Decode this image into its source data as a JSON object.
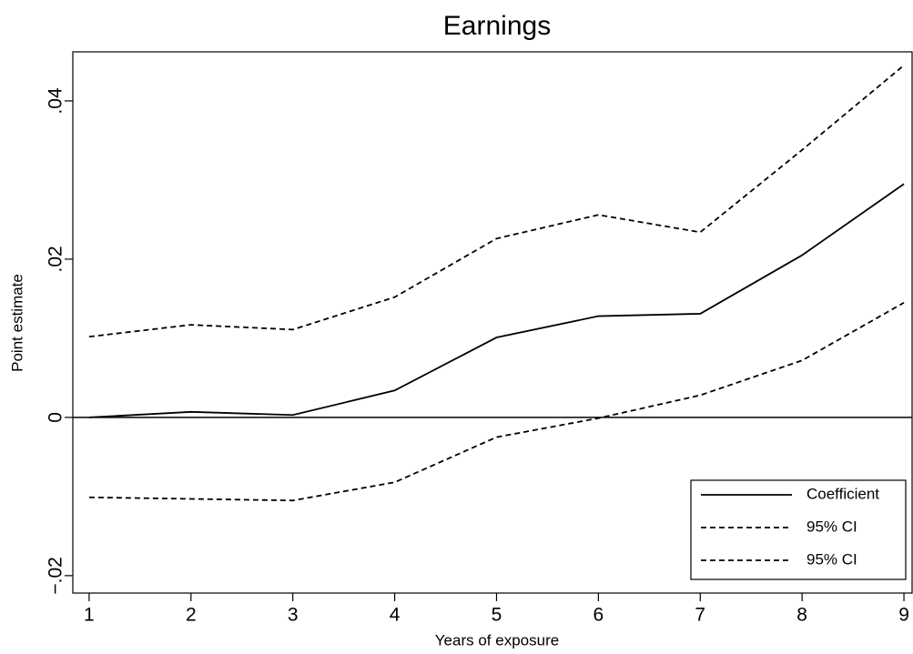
{
  "chart_data": {
    "type": "line",
    "title": "Earnings",
    "x_label": "Years of exposure",
    "y_label": "Point estimate",
    "x": [
      1,
      2,
      3,
      4,
      5,
      6,
      7,
      8,
      9
    ],
    "series": [
      {
        "name": "Coefficient",
        "color": "#000000",
        "dash": false,
        "values": [
          0,
          0.0007,
          0.0003,
          0.0034,
          0.0101,
          0.0128,
          0.0131,
          0.0205,
          0.0295
        ]
      },
      {
        "name": "95% CI",
        "color": "#000000",
        "dash": true,
        "values": [
          0.0102,
          0.0117,
          0.0111,
          0.0152,
          0.0226,
          0.0256,
          0.0234,
          0.0338,
          0.0445
        ]
      },
      {
        "name": "95% CI",
        "color": "#000000",
        "dash": true,
        "values": [
          -0.0101,
          -0.0103,
          -0.0105,
          -0.0082,
          -0.0025,
          -0.0001,
          0.0028,
          0.0072,
          0.0145
        ]
      }
    ],
    "xlim": [
      0.84,
      9.08
    ],
    "xticks": [
      1,
      2,
      3,
      4,
      5,
      6,
      7,
      8,
      9
    ],
    "ylim": [
      -0.0222,
      0.0462
    ],
    "yticks": [
      {
        "value": -0.02,
        "label": "−.02"
      },
      {
        "value": 0,
        "label": "0"
      },
      {
        "value": 0.02,
        "label": ".02"
      },
      {
        "value": 0.04,
        "label": ".04"
      }
    ],
    "reference_line": 0,
    "legend": "lower right"
  }
}
